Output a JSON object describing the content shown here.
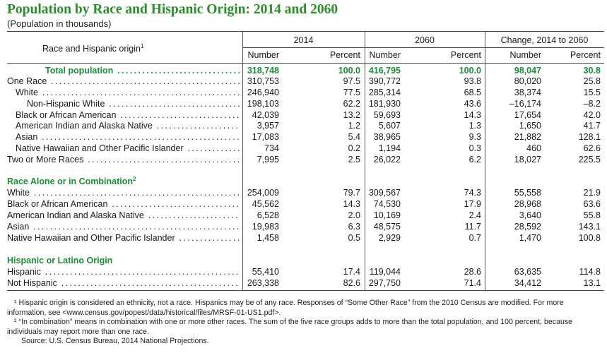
{
  "title": "Population by Race and Hispanic Origin: 2014 and 2060",
  "subtitle": "(Population in thousands)",
  "header": {
    "row_label": "Race and Hispanic origin",
    "row_label_sup": "1",
    "groups": [
      "2014",
      "2060",
      "Change, 2014 to 2060"
    ],
    "subcols": [
      "Number",
      "Percent",
      "Number",
      "Percent",
      "Number",
      "Percent"
    ]
  },
  "rows": [
    {
      "label": "Total population",
      "indent": 1,
      "style": "total",
      "values": [
        "318,748",
        "100.0",
        "416,795",
        "100.0",
        "98,047",
        "30.8"
      ]
    },
    {
      "label": "One Race",
      "indent": 0,
      "values": [
        "310,753",
        "97.5",
        "390,772",
        "93.8",
        "80,020",
        "25.8"
      ]
    },
    {
      "label": "White",
      "indent": 1,
      "values": [
        "246,940",
        "77.5",
        "285,314",
        "68.5",
        "38,374",
        "15.5"
      ]
    },
    {
      "label": "Non-Hispanic White",
      "indent": 2,
      "values": [
        "198,103",
        "62.2",
        "181,930",
        "43.6",
        "–16,174",
        "–8.2"
      ]
    },
    {
      "label": "Black or African American",
      "indent": 1,
      "values": [
        "42,039",
        "13.2",
        "59,693",
        "14.3",
        "17,654",
        "42.0"
      ]
    },
    {
      "label": "American Indian and Alaska Native",
      "indent": 1,
      "values": [
        "3,957",
        "1.2",
        "5,607",
        "1.3",
        "1,650",
        "41.7"
      ]
    },
    {
      "label": "Asian",
      "indent": 1,
      "values": [
        "17,083",
        "5.4",
        "38,965",
        "9.3",
        "21,882",
        "128.1"
      ]
    },
    {
      "label": "Native Hawaiian and Other Pacific Islander",
      "indent": 1,
      "values": [
        "734",
        "0.2",
        "1,194",
        "0.3",
        "460",
        "62.6"
      ]
    },
    {
      "label": "Two or More Races",
      "indent": 0,
      "values": [
        "7,995",
        "2.5",
        "26,022",
        "6.2",
        "18,027",
        "225.5"
      ]
    },
    {
      "label": "Race Alone or in Combination",
      "sup": "2",
      "style": "section"
    },
    {
      "label": "White",
      "indent": 0,
      "values": [
        "254,009",
        "79.7",
        "309,567",
        "74.3",
        "55,558",
        "21.9"
      ]
    },
    {
      "label": "Black or African American",
      "indent": 0,
      "values": [
        "45,562",
        "14.3",
        "74,530",
        "17.9",
        "28,968",
        "63.6"
      ]
    },
    {
      "label": "American Indian and Alaska Native",
      "indent": 0,
      "values": [
        "6,528",
        "2.0",
        "10,169",
        "2.4",
        "3,640",
        "55.8"
      ]
    },
    {
      "label": "Asian",
      "indent": 0,
      "values": [
        "19,983",
        "6.3",
        "48,575",
        "11.7",
        "28,592",
        "143.1"
      ]
    },
    {
      "label": "Native Hawaiian and Other Pacific Islander",
      "indent": 0,
      "values": [
        "1,458",
        "0.5",
        "2,929",
        "0.7",
        "1,470",
        "100.8"
      ]
    },
    {
      "label": "Hispanic or Latino Origin",
      "style": "section"
    },
    {
      "label": "Hispanic",
      "indent": 0,
      "values": [
        "55,410",
        "17.4",
        "119,044",
        "28.6",
        "63,635",
        "114.8"
      ]
    },
    {
      "label": "Not Hispanic",
      "indent": 0,
      "values": [
        "263,338",
        "82.6",
        "297,750",
        "71.4",
        "34,412",
        "13.1"
      ]
    }
  ],
  "notes": {
    "n1": "¹ Hispanic origin is considered an ethnicity, not a race. Hispanics may be of any race. Responses of “Some Other Race” from the 2010 Census are modified. For more information, see <www.census.gov/popest/data/historical/files/MRSF-01-US1.pdf>.",
    "n2": "² “In combination” means in combination with one or more other races. The sum of the five race groups adds to more than the total population, and 100 percent, because individuals may report more than one race.",
    "source": "Source: U.S. Census Bureau, 2014 National Projections."
  }
}
